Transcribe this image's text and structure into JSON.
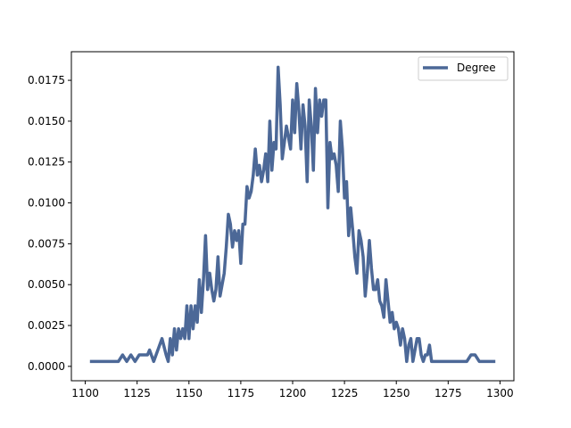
{
  "chart_data": {
    "type": "line",
    "title": "",
    "xlabel": "",
    "ylabel": "",
    "xlim": [
      1093.3,
      1306.7
    ],
    "ylim": [
      -0.00088,
      0.01925
    ],
    "xticks": [
      1100,
      1125,
      1150,
      1175,
      1200,
      1225,
      1250,
      1275,
      1300
    ],
    "yticks": [
      0.0,
      0.0025,
      0.005,
      0.0075,
      0.01,
      0.0125,
      0.015,
      0.0175
    ],
    "xtick_labels": [
      "1100",
      "1125",
      "1150",
      "1175",
      "1200",
      "1225",
      "1250",
      "1275",
      "1300"
    ],
    "ytick_labels": [
      "0.0000",
      "0.0025",
      "0.0050",
      "0.0075",
      "0.0100",
      "0.0125",
      "0.0150",
      "0.0175"
    ],
    "grid": false,
    "legend_position": "upper right",
    "colors": {
      "series": "#4c6897",
      "axes": "#000000",
      "background": "#ffffff"
    },
    "series": [
      {
        "name": "Degree",
        "x": [
          1103,
          1106,
          1109,
          1112,
          1114,
          1116,
          1118,
          1120,
          1122,
          1124,
          1126,
          1128,
          1130,
          1131,
          1133,
          1135,
          1137,
          1139,
          1140,
          1141,
          1142,
          1143,
          1144,
          1145,
          1146,
          1147,
          1148,
          1149,
          1150,
          1151,
          1152,
          1153,
          1154,
          1155,
          1156,
          1157,
          1158,
          1159,
          1160,
          1161,
          1162,
          1163,
          1164,
          1165,
          1166,
          1167,
          1168,
          1169,
          1170,
          1171,
          1172,
          1173,
          1174,
          1175,
          1176,
          1177,
          1178,
          1179,
          1180,
          1181,
          1182,
          1183,
          1184,
          1185,
          1186,
          1187,
          1188,
          1189,
          1190,
          1191,
          1192,
          1193,
          1194,
          1195,
          1196,
          1197,
          1198,
          1199,
          1200,
          1201,
          1202,
          1203,
          1204,
          1205,
          1206,
          1207,
          1208,
          1209,
          1210,
          1211,
          1212,
          1213,
          1214,
          1215,
          1216,
          1217,
          1218,
          1219,
          1220,
          1221,
          1222,
          1223,
          1224,
          1225,
          1226,
          1227,
          1228,
          1229,
          1230,
          1231,
          1232,
          1233,
          1234,
          1235,
          1236,
          1237,
          1238,
          1239,
          1240,
          1241,
          1242,
          1243,
          1244,
          1245,
          1246,
          1247,
          1248,
          1249,
          1250,
          1251,
          1252,
          1253,
          1254,
          1255,
          1256,
          1257,
          1258,
          1259,
          1260,
          1261,
          1262,
          1263,
          1264,
          1265,
          1266,
          1267,
          1269,
          1272,
          1275,
          1278,
          1280,
          1282,
          1284,
          1286,
          1288,
          1290,
          1293,
          1297
        ],
        "values": [
          0.0003,
          0.0003,
          0.0003,
          0.0003,
          0.0003,
          0.0003,
          0.0007,
          0.0003,
          0.0007,
          0.0003,
          0.0007,
          0.0007,
          0.0007,
          0.001,
          0.0003,
          0.001,
          0.0017,
          0.0007,
          0.0003,
          0.0017,
          0.0007,
          0.0023,
          0.001,
          0.0023,
          0.0017,
          0.0023,
          0.0017,
          0.0037,
          0.0017,
          0.0037,
          0.0023,
          0.0037,
          0.0027,
          0.0053,
          0.0033,
          0.0053,
          0.008,
          0.0047,
          0.0057,
          0.0047,
          0.004,
          0.0047,
          0.0067,
          0.0043,
          0.005,
          0.0057,
          0.0073,
          0.0093,
          0.0087,
          0.0073,
          0.0083,
          0.0077,
          0.0083,
          0.0063,
          0.0087,
          0.0087,
          0.011,
          0.0103,
          0.0107,
          0.0117,
          0.0133,
          0.0117,
          0.0123,
          0.0113,
          0.012,
          0.013,
          0.0113,
          0.015,
          0.012,
          0.0137,
          0.0133,
          0.0183,
          0.016,
          0.0127,
          0.0137,
          0.0147,
          0.014,
          0.0133,
          0.0163,
          0.0143,
          0.0173,
          0.0157,
          0.0133,
          0.016,
          0.0147,
          0.0113,
          0.0163,
          0.0147,
          0.012,
          0.017,
          0.0143,
          0.0163,
          0.0153,
          0.0163,
          0.0163,
          0.0097,
          0.0137,
          0.0127,
          0.013,
          0.0123,
          0.0107,
          0.015,
          0.0133,
          0.0103,
          0.0113,
          0.008,
          0.0097,
          0.0083,
          0.0067,
          0.0057,
          0.0083,
          0.0077,
          0.0067,
          0.0043,
          0.0057,
          0.0077,
          0.006,
          0.0047,
          0.0047,
          0.0053,
          0.004,
          0.0037,
          0.003,
          0.0053,
          0.004,
          0.0027,
          0.0033,
          0.0023,
          0.0027,
          0.0023,
          0.0013,
          0.0023,
          0.0017,
          0.0003,
          0.0013,
          0.0017,
          0.0003,
          0.001,
          0.0017,
          0.0017,
          0.0007,
          0.0003,
          0.0007,
          0.0007,
          0.0013,
          0.0003,
          0.0003,
          0.0003,
          0.0003,
          0.0003,
          0.0003,
          0.0003,
          0.0003,
          0.0007,
          0.0007,
          0.0003,
          0.0003,
          0.0003
        ]
      }
    ]
  }
}
